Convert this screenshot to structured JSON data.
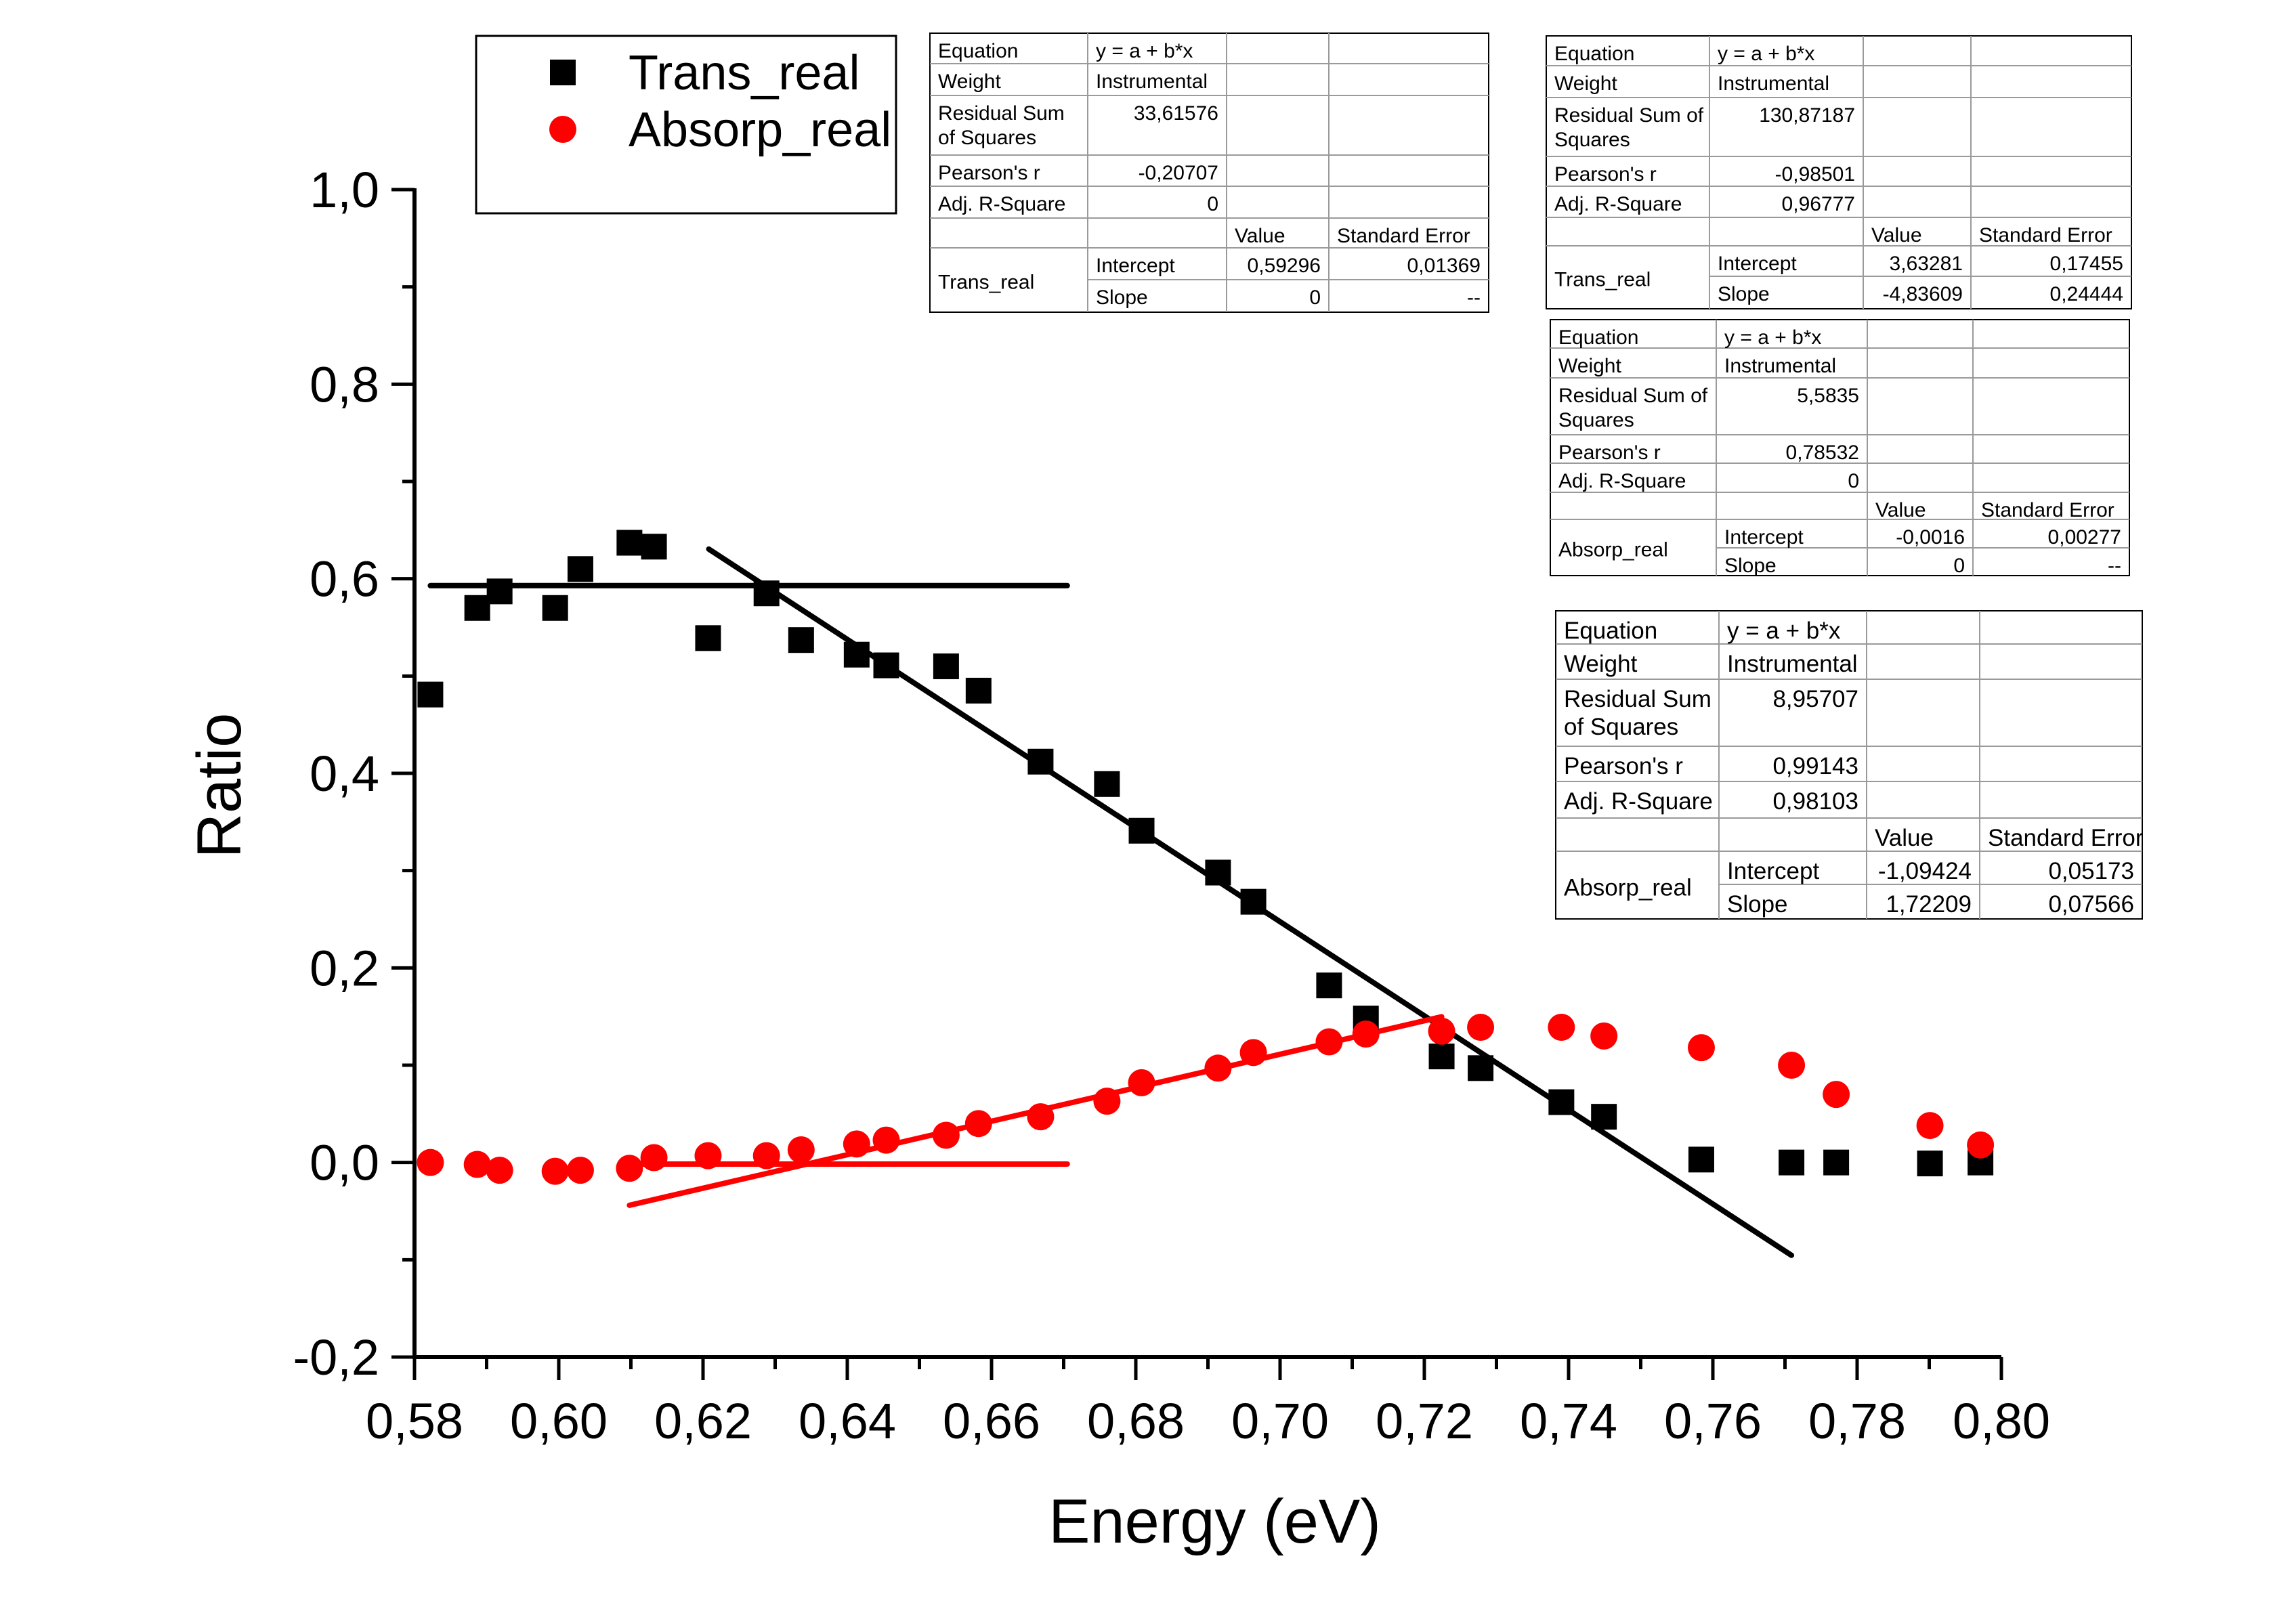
{
  "chart_data": {
    "type": "scatter",
    "xlabel": "Energy (eV)",
    "ylabel": "Ratio",
    "xlim": [
      0.58,
      0.8
    ],
    "ylim": [
      -0.2,
      1.0
    ],
    "x_ticks": [
      "0,58",
      "0,60",
      "0,62",
      "0,64",
      "0,66",
      "0,68",
      "0,70",
      "0,72",
      "0,74",
      "0,76",
      "0,78",
      "0,80"
    ],
    "y_ticks": [
      "-0,2",
      "0,0",
      "0,2",
      "0,4",
      "0,6",
      "0,8",
      "1,0"
    ],
    "legend": {
      "position": "top-left",
      "entries": [
        {
          "label": "Trans_real",
          "marker": "square",
          "color": "#000000"
        },
        {
          "label": "Absorp_real",
          "marker": "circle",
          "color": "#ff0000"
        }
      ]
    },
    "series": [
      {
        "name": "Trans_real",
        "marker": "square",
        "color": "#000000",
        "x": [
          0.5822,
          0.5887,
          0.5918,
          0.5995,
          0.603,
          0.6098,
          0.6132,
          0.6207,
          0.6288,
          0.6336,
          0.6413,
          0.6454,
          0.6537,
          0.6582,
          0.6668,
          0.676,
          0.6808,
          0.6914,
          0.6963,
          0.7068,
          0.7119,
          0.7224,
          0.7278,
          0.739,
          0.7449,
          0.7584,
          0.7709,
          0.7771,
          0.7901,
          0.7971
        ],
        "y": [
          0.481,
          0.57,
          0.587,
          0.57,
          0.61,
          0.637,
          0.633,
          0.539,
          0.585,
          0.537,
          0.522,
          0.511,
          0.51,
          0.485,
          0.412,
          0.389,
          0.341,
          0.298,
          0.268,
          0.182,
          0.148,
          0.109,
          0.097,
          0.062,
          0.047,
          0.003,
          0.0,
          0.0,
          -0.001,
          0.0
        ]
      },
      {
        "name": "Absorp_real",
        "marker": "circle",
        "color": "#ff0000",
        "x": [
          0.5822,
          0.5887,
          0.5918,
          0.5995,
          0.603,
          0.6098,
          0.6132,
          0.6207,
          0.6288,
          0.6336,
          0.6413,
          0.6454,
          0.6537,
          0.6582,
          0.6668,
          0.676,
          0.6808,
          0.6914,
          0.6963,
          0.7068,
          0.7119,
          0.7224,
          0.7278,
          0.739,
          0.7449,
          0.7584,
          0.7709,
          0.7771,
          0.7901,
          0.7971
        ],
        "y": [
          0.0,
          -0.002,
          -0.008,
          -0.009,
          -0.008,
          -0.006,
          0.005,
          0.007,
          0.007,
          0.013,
          0.019,
          0.023,
          0.028,
          0.04,
          0.047,
          0.063,
          0.082,
          0.097,
          0.113,
          0.124,
          0.132,
          0.135,
          0.139,
          0.139,
          0.13,
          0.118,
          0.1,
          0.07,
          0.038,
          0.018
        ]
      }
    ],
    "fit_lines": [
      {
        "series": "Trans_real",
        "color": "#000000",
        "x": [
          0.5822,
          0.6705
        ],
        "y": [
          0.59296,
          0.59296
        ]
      },
      {
        "series": "Trans_real",
        "color": "#000000",
        "x": [
          0.6208,
          0.7709
        ],
        "y": [
          0.6305,
          -0.0954
        ]
      },
      {
        "series": "Absorp_real",
        "color": "#ff0000",
        "x": [
          0.6098,
          0.6705
        ],
        "y": [
          -0.0016,
          -0.0016
        ]
      },
      {
        "series": "Absorp_real",
        "color": "#ff0000",
        "x": [
          0.6098,
          0.7224
        ],
        "y": [
          -0.044,
          0.1498
        ]
      }
    ]
  },
  "fit_tables": [
    {
      "equation_label": "Equation",
      "equation": "y = a + b*x",
      "weight_label": "Weight",
      "weight": "Instrumental",
      "rss_label": [
        "Residual Sum",
        "of Squares"
      ],
      "rss": "33,61576",
      "pearson_label": "Pearson's r",
      "pearson": "-0,20707",
      "adjr_label": "Adj. R-Square",
      "adjr": "0",
      "value_header": "Value",
      "se_header": "Standard Error",
      "series_name": "Trans_real",
      "intercept_label": "Intercept",
      "intercept": "0,59296",
      "intercept_se": "0,01369",
      "slope_label": "Slope",
      "slope": "0",
      "slope_se": "--"
    },
    {
      "equation_label": "Equation",
      "equation": "y = a + b*x",
      "weight_label": "Weight",
      "weight": "Instrumental",
      "rss_label": [
        "Residual Sum of",
        "Squares"
      ],
      "rss": "130,87187",
      "pearson_label": "Pearson's r",
      "pearson": "-0,98501",
      "adjr_label": "Adj. R-Square",
      "adjr": "0,96777",
      "value_header": "Value",
      "se_header": "Standard Error",
      "series_name": "Trans_real",
      "intercept_label": "Intercept",
      "intercept": "3,63281",
      "intercept_se": "0,17455",
      "slope_label": "Slope",
      "slope": "-4,83609",
      "slope_se": "0,24444"
    },
    {
      "equation_label": "Equation",
      "equation": "y = a + b*x",
      "weight_label": "Weight",
      "weight": "Instrumental",
      "rss_label": [
        "Residual Sum of",
        "Squares"
      ],
      "rss": "5,5835",
      "pearson_label": "Pearson's r",
      "pearson": "0,78532",
      "adjr_label": "Adj. R-Square",
      "adjr": "0",
      "value_header": "Value",
      "se_header": "Standard Error",
      "series_name": "Absorp_real",
      "intercept_label": "Intercept",
      "intercept": "-0,0016",
      "intercept_se": "0,00277",
      "slope_label": "Slope",
      "slope": "0",
      "slope_se": "--"
    },
    {
      "equation_label": "Equation",
      "equation": "y = a + b*x",
      "weight_label": "Weight",
      "weight": "Instrumental",
      "rss_label": [
        "Residual Sum",
        "of Squares"
      ],
      "rss": "8,95707",
      "pearson_label": "Pearson's r",
      "pearson": "0,99143",
      "adjr_label": "Adj. R-Square",
      "adjr": "0,98103",
      "value_header": "Value",
      "se_header": "Standard Error",
      "series_name": "Absorp_real",
      "intercept_label": "Intercept",
      "intercept": "-1,09424",
      "intercept_se": "0,05173",
      "slope_label": "Slope",
      "slope": "1,72209",
      "slope_se": "0,07566"
    }
  ]
}
